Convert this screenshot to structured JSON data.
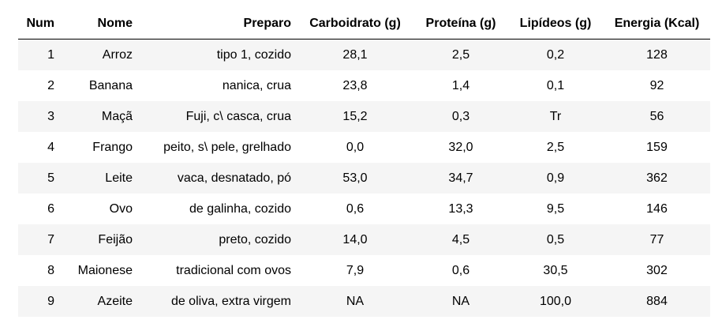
{
  "table": {
    "columns": [
      "Num",
      "Nome",
      "Preparo",
      "Carboidrato (g)",
      "Proteína (g)",
      "Lipídeos (g)",
      "Energia (Kcal)"
    ],
    "rows": [
      [
        "1",
        "Arroz",
        "tipo 1, cozido",
        "28,1",
        "2,5",
        "0,2",
        "128"
      ],
      [
        "2",
        "Banana",
        "nanica, crua",
        "23,8",
        "1,4",
        "0,1",
        "92"
      ],
      [
        "3",
        "Maçã",
        "Fuji, c\\ casca, crua",
        "15,2",
        "0,3",
        "Tr",
        "56"
      ],
      [
        "4",
        "Frango",
        "peito, s\\ pele, grelhado",
        "0,0",
        "32,0",
        "2,5",
        "159"
      ],
      [
        "5",
        "Leite",
        "vaca, desnatado, pó",
        "53,0",
        "34,7",
        "0,9",
        "362"
      ],
      [
        "6",
        "Ovo",
        "de galinha, cozido",
        "0,6",
        "13,3",
        "9,5",
        "146"
      ],
      [
        "7",
        "Feijão",
        "preto, cozido",
        "14,0",
        "4,5",
        "0,5",
        "77"
      ],
      [
        "8",
        "Maionese",
        "tradicional com ovos",
        "7,9",
        "0,6",
        "30,5",
        "302"
      ],
      [
        "9",
        "Azeite",
        "de oliva, extra virgem",
        "NA",
        "NA",
        "100,0",
        "884"
      ]
    ]
  }
}
